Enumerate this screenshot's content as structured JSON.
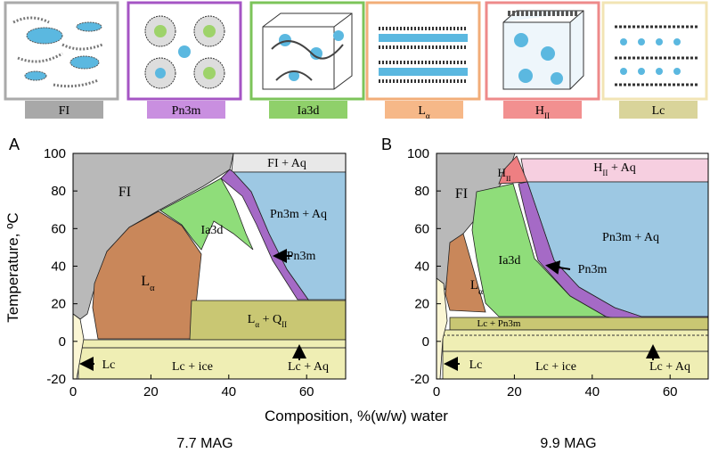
{
  "phases": [
    {
      "parts": [
        {
          "text": "FI"
        }
      ]
    },
    {
      "parts": [
        {
          "text": "Pn3m"
        }
      ]
    },
    {
      "parts": [
        {
          "text": "Ia3d"
        }
      ]
    },
    {
      "parts": [
        {
          "text": "L"
        },
        {
          "sub": "α"
        }
      ]
    },
    {
      "parts": [
        {
          "text": "H"
        },
        {
          "sub": "II"
        }
      ]
    },
    {
      "parts": [
        {
          "text": "Lc"
        }
      ]
    }
  ],
  "y_axis_title": "Temperature, ºC",
  "x_axis_title": "Composition, %(w/w) water",
  "panels": [
    {
      "letter": "A",
      "caption": "7.7 MAG",
      "yticks": [
        100,
        80,
        60,
        40,
        20,
        0,
        -20
      ],
      "xticks": [
        0,
        20,
        40,
        60
      ],
      "regions": [
        {
          "parts": [
            {
              "text": "FI"
            }
          ]
        },
        {
          "parts": [
            {
              "text": "FI + Aq"
            }
          ]
        },
        {
          "parts": [
            {
              "text": "Pn3m + Aq"
            }
          ]
        },
        {
          "parts": [
            {
              "text": "Ia3d"
            }
          ]
        },
        {
          "parts": [
            {
              "text": "Pn3m"
            }
          ]
        },
        {
          "parts": [
            {
              "text": "L"
            },
            {
              "sub": "α"
            }
          ]
        },
        {
          "parts": [
            {
              "text": "L"
            },
            {
              "sub": "α"
            },
            {
              "text": " + Q"
            },
            {
              "sub": "II"
            }
          ]
        },
        {
          "parts": [
            {
              "text": "Lc"
            }
          ]
        },
        {
          "parts": [
            {
              "text": "Lc + ice"
            }
          ]
        },
        {
          "parts": [
            {
              "text": "Lc + Aq"
            }
          ]
        }
      ]
    },
    {
      "letter": "B",
      "caption": "9.9 MAG",
      "yticks": [
        100,
        80,
        60,
        40,
        20,
        0,
        -20
      ],
      "xticks": [
        0,
        20,
        40,
        60
      ],
      "regions": [
        {
          "parts": [
            {
              "text": "FI"
            }
          ]
        },
        {
          "parts": [
            {
              "text": "H"
            },
            {
              "sub": "II"
            }
          ]
        },
        {
          "parts": [
            {
              "text": "H"
            },
            {
              "sub": "II"
            },
            {
              "text": " + Aq"
            }
          ]
        },
        {
          "parts": [
            {
              "text": "Pn3m + Aq"
            }
          ]
        },
        {
          "parts": [
            {
              "text": "Ia3d"
            }
          ]
        },
        {
          "parts": [
            {
              "text": "Pn3m"
            }
          ]
        },
        {
          "parts": [
            {
              "text": "L"
            },
            {
              "sub": "α"
            }
          ]
        },
        {
          "parts": [
            {
              "text": "Lc + Pn3m"
            }
          ]
        },
        {
          "parts": [
            {
              "text": "Lc"
            }
          ]
        },
        {
          "parts": [
            {
              "text": "Lc + ice"
            }
          ]
        },
        {
          "parts": [
            {
              "text": "Lc + Aq"
            }
          ]
        }
      ]
    }
  ]
}
